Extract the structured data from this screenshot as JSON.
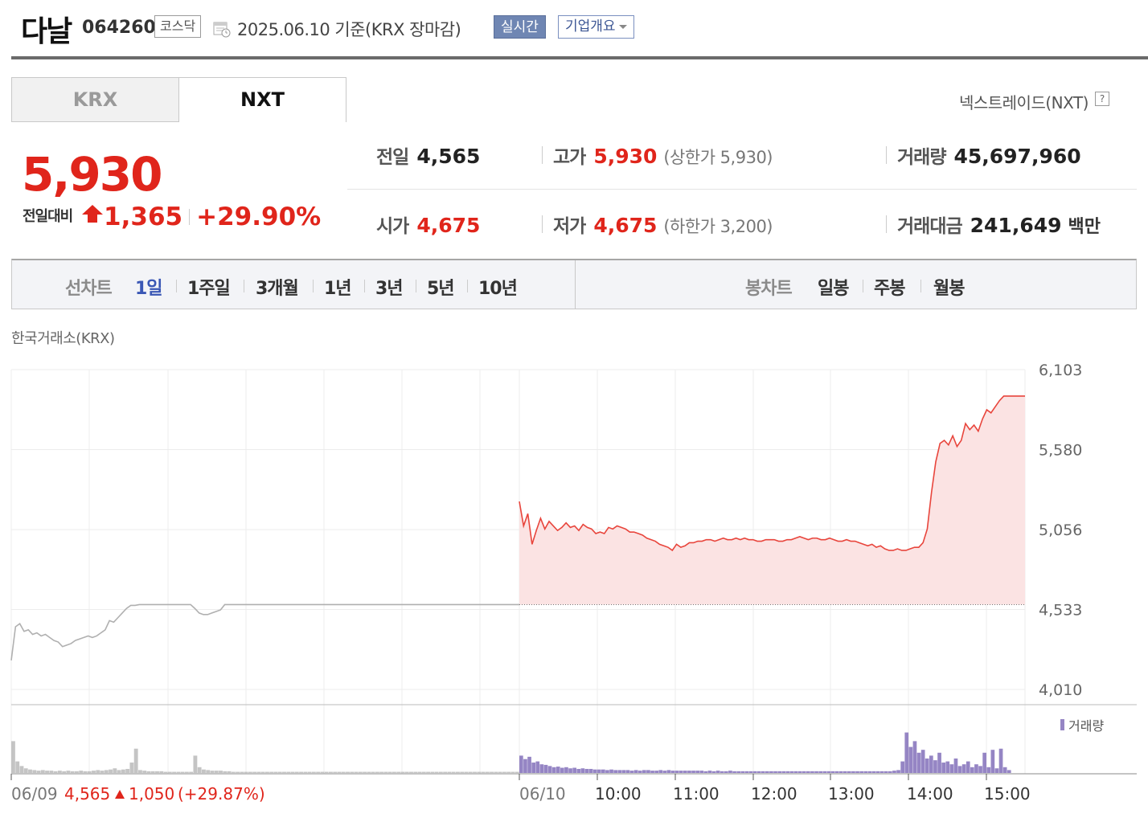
{
  "header": {
    "name": "다날",
    "code": "064260",
    "market": "코스닥",
    "date": "2025.06.10  기준(KRX 장마감)",
    "realtime_label": "실시간",
    "company_label": "기업개요"
  },
  "tabs": [
    {
      "label": "KRX",
      "selected": false
    },
    {
      "label": "NXT",
      "selected": true
    }
  ],
  "nxt_link": "넥스트레이드(NXT)",
  "price": {
    "current": "5,930",
    "change_label": "전일대비",
    "change": "1,365",
    "change_pct": "+29.90%",
    "color_up": "#e0251b"
  },
  "stats": {
    "prev": {
      "label": "전일",
      "value": "4,565"
    },
    "high": {
      "label": "고가",
      "value": "5,930",
      "limit": "(상한가 5,930)"
    },
    "volume": {
      "label": "거래량",
      "value": "45,697,960"
    },
    "open": {
      "label": "시가",
      "value": "4,675"
    },
    "low": {
      "label": "저가",
      "value": "4,675",
      "limit": "(하한가 3,200)"
    },
    "amount": {
      "label": "거래대금",
      "value": "241,649",
      "unit": "백만"
    }
  },
  "period": {
    "line_label": "선차트",
    "line_items": [
      "1일",
      "1주일",
      "3개월",
      "1년",
      "3년",
      "5년",
      "10년"
    ],
    "selected": "1일",
    "candle_label": "봉차트",
    "candle_items": [
      "일봉",
      "주봉",
      "월봉"
    ]
  },
  "exchange_label": "한국거래소(KRX)",
  "chart_data": {
    "type": "line",
    "ylim": [
      4010,
      6103
    ],
    "y_ticks": [
      "6,103",
      "5,580",
      "5,056",
      "4,533",
      "4,010"
    ],
    "y_tick_values": [
      6103,
      5580,
      5056,
      4533,
      4010
    ],
    "prev_close": 4565,
    "x_labels": [
      "06/10",
      "10:00",
      "11:00",
      "12:00",
      "13:00",
      "14:00",
      "15:00"
    ],
    "volume_label": "거래량",
    "footer": {
      "date": "06/09",
      "price": "4,565",
      "change": "1,050",
      "pct": "(+29.87%)"
    },
    "series": [
      {
        "day": "06/09",
        "color": "#b0b0b0",
        "values": [
          4200,
          4420,
          4440,
          4390,
          4400,
          4370,
          4380,
          4360,
          4370,
          4350,
          4330,
          4320,
          4290,
          4300,
          4310,
          4330,
          4340,
          4350,
          4360,
          4350,
          4360,
          4380,
          4400,
          4460,
          4450,
          4480,
          4510,
          4540,
          4560,
          4560,
          4565,
          4565,
          4565,
          4565,
          4565,
          4565,
          4565,
          4565,
          4565,
          4565,
          4565,
          4565,
          4565,
          4540,
          4510,
          4500,
          4500,
          4510,
          4520,
          4530,
          4565,
          4565,
          4565,
          4565,
          4565,
          4565,
          4565,
          4565,
          4565,
          4565,
          4565,
          4565,
          4565,
          4565,
          4565,
          4565,
          4565,
          4565,
          4565,
          4565,
          4565,
          4565,
          4565,
          4565,
          4565,
          4565,
          4565,
          4565,
          4565,
          4565,
          4565,
          4565,
          4565,
          4565,
          4565,
          4565,
          4565,
          4565,
          4565,
          4565,
          4565,
          4565,
          4565,
          4565,
          4565,
          4565,
          4565,
          4565,
          4565,
          4565,
          4565,
          4565,
          4565,
          4565,
          4565,
          4565,
          4565,
          4565,
          4565,
          4565,
          4565,
          4565,
          4565,
          4565,
          4565,
          4565,
          4565,
          4565,
          4565,
          4565
        ]
      },
      {
        "day": "06/10",
        "color": "#e8453c",
        "values": [
          5240,
          5080,
          5160,
          4960,
          5050,
          5130,
          5060,
          5110,
          5080,
          5050,
          5070,
          5100,
          5070,
          5080,
          5050,
          5090,
          5070,
          5060,
          5030,
          5040,
          5030,
          5070,
          5060,
          5080,
          5070,
          5060,
          5040,
          5040,
          5030,
          5020,
          5000,
          4990,
          4980,
          4960,
          4950,
          4940,
          4920,
          4960,
          4940,
          4950,
          4970,
          4970,
          4980,
          4980,
          4990,
          4990,
          4980,
          4990,
          5000,
          4990,
          4990,
          5000,
          4990,
          5000,
          4990,
          4990,
          4980,
          4980,
          4990,
          4990,
          4990,
          4980,
          4980,
          4990,
          4990,
          5000,
          5010,
          5000,
          4990,
          5000,
          5000,
          4990,
          4990,
          5000,
          4990,
          4980,
          4980,
          4990,
          4980,
          4980,
          4970,
          4960,
          4950,
          4960,
          4940,
          4950,
          4930,
          4920,
          4920,
          4930,
          4920,
          4920,
          4930,
          4940,
          4940,
          4970,
          5060,
          5300,
          5500,
          5620,
          5640,
          5610,
          5670,
          5600,
          5640,
          5750,
          5710,
          5740,
          5700,
          5780,
          5840,
          5820,
          5860,
          5900,
          5930,
          5930,
          5930,
          5930,
          5930,
          5930
        ]
      }
    ],
    "volume": {
      "06/09": [
        0.55,
        0.2,
        0.12,
        0.08,
        0.06,
        0.05,
        0.04,
        0.05,
        0.04,
        0.04,
        0.03,
        0.04,
        0.03,
        0.04,
        0.03,
        0.03,
        0.04,
        0.03,
        0.03,
        0.04,
        0.05,
        0.04,
        0.05,
        0.06,
        0.08,
        0.05,
        0.06,
        0.07,
        0.18,
        0.42,
        0.05,
        0.04,
        0.03,
        0.03,
        0.03,
        0.03,
        0.02,
        0.02,
        0.02,
        0.02,
        0.02,
        0.02,
        0.02,
        0.3,
        0.1,
        0.06,
        0.05,
        0.04,
        0.04,
        0.04,
        0.03,
        0.03,
        0.02,
        0.02,
        0.02,
        0.02,
        0.02,
        0.02,
        0.02,
        0.02,
        0.02,
        0.02,
        0.02,
        0.02,
        0.02,
        0.02,
        0.02,
        0.02,
        0.02,
        0.02,
        0.02,
        0.02,
        0.02,
        0.02,
        0.02,
        0.02,
        0.02,
        0.02,
        0.02,
        0.02,
        0.02,
        0.02,
        0.02,
        0.02,
        0.02,
        0.02,
        0.02,
        0.02,
        0.02,
        0.02,
        0.02,
        0.02,
        0.02,
        0.02,
        0.02,
        0.02,
        0.02,
        0.02,
        0.02,
        0.02,
        0.02,
        0.02,
        0.02,
        0.02,
        0.02,
        0.02,
        0.02,
        0.02,
        0.02,
        0.02,
        0.02,
        0.02,
        0.02,
        0.02,
        0.02,
        0.02,
        0.02,
        0.02,
        0.02,
        0.02
      ],
      "06/10": [
        0.3,
        0.24,
        0.28,
        0.18,
        0.2,
        0.15,
        0.14,
        0.12,
        0.1,
        0.11,
        0.09,
        0.1,
        0.08,
        0.09,
        0.07,
        0.08,
        0.07,
        0.07,
        0.06,
        0.06,
        0.06,
        0.05,
        0.06,
        0.05,
        0.05,
        0.05,
        0.05,
        0.04,
        0.05,
        0.04,
        0.05,
        0.05,
        0.04,
        0.04,
        0.05,
        0.04,
        0.05,
        0.04,
        0.04,
        0.04,
        0.04,
        0.04,
        0.04,
        0.04,
        0.04,
        0.03,
        0.04,
        0.03,
        0.04,
        0.03,
        0.03,
        0.04,
        0.03,
        0.03,
        0.03,
        0.03,
        0.03,
        0.03,
        0.03,
        0.03,
        0.03,
        0.03,
        0.03,
        0.03,
        0.03,
        0.03,
        0.03,
        0.03,
        0.03,
        0.03,
        0.03,
        0.03,
        0.03,
        0.03,
        0.03,
        0.03,
        0.03,
        0.03,
        0.03,
        0.03,
        0.03,
        0.03,
        0.03,
        0.03,
        0.03,
        0.03,
        0.03,
        0.03,
        0.03,
        0.03,
        0.03,
        0.04,
        0.05,
        0.2,
        0.7,
        0.45,
        0.55,
        0.35,
        0.4,
        0.25,
        0.3,
        0.22,
        0.35,
        0.18,
        0.2,
        0.15,
        0.25,
        0.12,
        0.15,
        0.2,
        0.1,
        0.15,
        0.12,
        0.35,
        0.1,
        0.4,
        0.08,
        0.42,
        0.1,
        0.05
      ]
    }
  }
}
